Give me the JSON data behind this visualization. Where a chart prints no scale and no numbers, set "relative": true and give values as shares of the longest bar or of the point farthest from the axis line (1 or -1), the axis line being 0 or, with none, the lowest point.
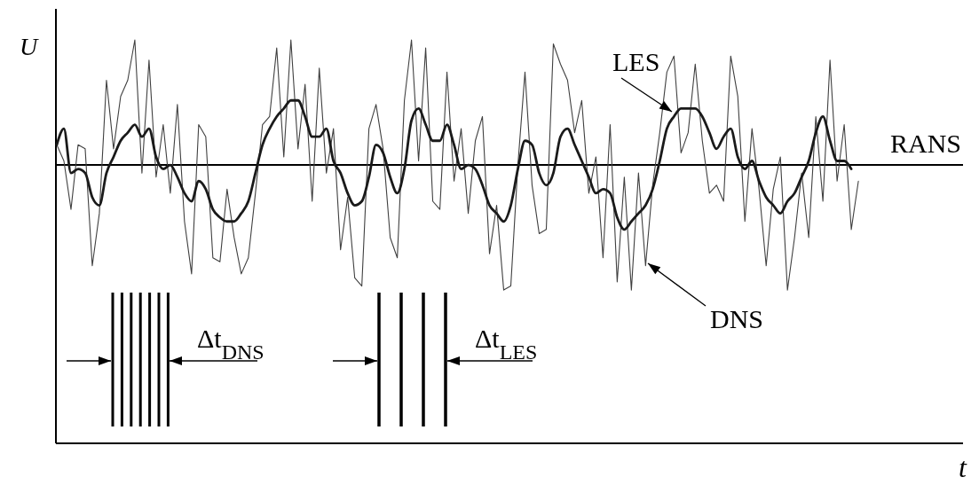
{
  "chart_data": {
    "type": "line",
    "relative": true,
    "xlabel": "t",
    "ylabel": "U",
    "categories": [
      null,
      null,
      null,
      null,
      null,
      null,
      null,
      null,
      null,
      null,
      null,
      null,
      null,
      null,
      null,
      null,
      null,
      null,
      null,
      null,
      null,
      null,
      null,
      null,
      null,
      null,
      null,
      null,
      null,
      null,
      null,
      null,
      null,
      null,
      null,
      null,
      null,
      null,
      null,
      null,
      null,
      null,
      null,
      null,
      null,
      null,
      null,
      null,
      null,
      null,
      null,
      null,
      null,
      null,
      null,
      null,
      null,
      null,
      null,
      null,
      null,
      null,
      null,
      null,
      null,
      null,
      null,
      null,
      null,
      null,
      null,
      null,
      null,
      null,
      null,
      null,
      null,
      null,
      null,
      null,
      null,
      null,
      null,
      null,
      null,
      null,
      null,
      null,
      null,
      null,
      null,
      null,
      null,
      null,
      null,
      null,
      null,
      null,
      null,
      null,
      null,
      null,
      null,
      null,
      null,
      null,
      null,
      null,
      null,
      null,
      null,
      null,
      null,
      null,
      null,
      null,
      null,
      null,
      null,
      null,
      null,
      null,
      null,
      null,
      null,
      null,
      null,
      null
    ],
    "series": [
      {
        "name": "DNS",
        "color": "#404040",
        "values": [
          0.74,
          0.7,
          0.58,
          0.74,
          0.73,
          0.44,
          0.57,
          0.9,
          0.73,
          0.86,
          0.9,
          1.0,
          0.67,
          0.95,
          0.66,
          0.79,
          0.62,
          0.84,
          0.55,
          0.42,
          0.79,
          0.76,
          0.46,
          0.45,
          0.63,
          0.51,
          0.42,
          0.46,
          0.62,
          0.79,
          0.81,
          0.98,
          0.71,
          1.0,
          0.73,
          0.89,
          0.6,
          0.93,
          0.67,
          0.78,
          0.48,
          0.61,
          0.41,
          0.39,
          0.78,
          0.84,
          0.73,
          0.51,
          0.46,
          0.85,
          1.0,
          0.7,
          0.98,
          0.6,
          0.58,
          0.92,
          0.65,
          0.78,
          0.57,
          0.75,
          0.81,
          0.47,
          0.59,
          0.38,
          0.39,
          0.69,
          0.92,
          0.64,
          0.52,
          0.53,
          0.99,
          0.94,
          0.9,
          0.77,
          0.85,
          0.62,
          0.71,
          0.46,
          0.79,
          0.4,
          0.66,
          0.38,
          0.67,
          0.44,
          0.64,
          0.77,
          0.92,
          0.96,
          0.72,
          0.77,
          0.94,
          0.75,
          0.62,
          0.64,
          0.6,
          0.96,
          0.86,
          0.55,
          0.78,
          0.63,
          0.44,
          0.63,
          0.71,
          0.38,
          0.51,
          0.67,
          0.51,
          0.81,
          0.6,
          0.95,
          0.65,
          0.79,
          0.53,
          0.65,
          null,
          null,
          null,
          null,
          null,
          null,
          null,
          null,
          null,
          null,
          null,
          null,
          null,
          null
        ]
      },
      {
        "name": "LES",
        "color": "#1a1a1a",
        "values": [
          0.74,
          0.78,
          0.67,
          0.68,
          0.67,
          0.61,
          0.59,
          0.67,
          0.71,
          0.75,
          0.77,
          0.79,
          0.76,
          0.78,
          0.71,
          0.68,
          0.69,
          0.66,
          0.62,
          0.6,
          0.65,
          0.63,
          0.58,
          0.56,
          0.55,
          0.55,
          0.57,
          0.6,
          0.67,
          0.74,
          0.78,
          0.81,
          0.83,
          0.85,
          0.85,
          0.81,
          0.76,
          0.76,
          0.78,
          0.7,
          0.67,
          0.62,
          0.59,
          0.6,
          0.66,
          0.74,
          0.72,
          0.66,
          0.62,
          0.68,
          0.8,
          0.83,
          0.79,
          0.75,
          0.75,
          0.79,
          0.74,
          0.68,
          0.69,
          0.68,
          0.64,
          0.59,
          0.57,
          0.55,
          0.59,
          0.68,
          0.75,
          0.74,
          0.67,
          0.64,
          0.67,
          0.76,
          0.78,
          0.74,
          0.7,
          0.66,
          0.62,
          0.63,
          0.62,
          0.56,
          0.53,
          0.55,
          0.57,
          0.59,
          0.63,
          0.7,
          0.78,
          0.81,
          0.83,
          0.83,
          0.83,
          0.81,
          0.77,
          0.73,
          0.76,
          0.78,
          0.71,
          0.68,
          0.7,
          0.65,
          0.61,
          0.59,
          0.57,
          0.6,
          0.62,
          0.66,
          0.7,
          0.77,
          0.81,
          0.75,
          0.7,
          0.7,
          0.68,
          null,
          null,
          null,
          null,
          null,
          null,
          null,
          null,
          null,
          null,
          null,
          null,
          null,
          null,
          null
        ]
      }
    ],
    "ref_lines": [
      {
        "axis": "y",
        "value": 0.69,
        "label": "RANS",
        "color": "#000000"
      }
    ],
    "annotations": [
      "Δt$_{DNS}$",
      "Δt$_{LES}$"
    ]
  }
}
